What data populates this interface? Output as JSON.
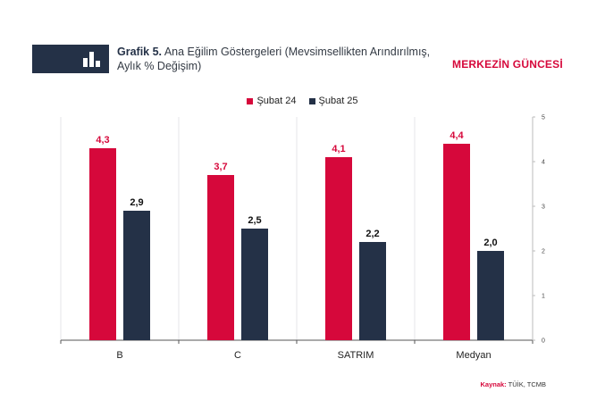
{
  "header": {
    "title_bold": "Grafik 5.",
    "title_line1": "Ana Eğilim Göstergeleri (Mevsimsellikten Arındırılmış,",
    "title_line2": "Aylık % Değişim)",
    "brand": "MERKEZİN GÜNCESİ",
    "logo_icon": "bar-chart-icon"
  },
  "source": {
    "label": "Kaynak:",
    "text": "TÜİK, TCMB"
  },
  "chart_data": {
    "type": "bar",
    "categories": [
      "B",
      "C",
      "SATRIM",
      "Medyan"
    ],
    "series": [
      {
        "name": "Şubat 24",
        "color": "#d6083b",
        "values": [
          4.3,
          3.7,
          4.1,
          4.4
        ],
        "labels": [
          "4,3",
          "3,7",
          "4,1",
          "4,4"
        ]
      },
      {
        "name": "Şubat 25",
        "color": "#243147",
        "values": [
          2.9,
          2.5,
          2.2,
          2.0
        ],
        "labels": [
          "2,9",
          "2,5",
          "2,2",
          "2,0"
        ]
      }
    ],
    "ylim": [
      0,
      5
    ],
    "yticks": [
      "0",
      "1",
      "2",
      "3",
      "4",
      "5"
    ],
    "y_axis_position": "right",
    "legend_position": "top-center",
    "grid": "vertical separators"
  }
}
